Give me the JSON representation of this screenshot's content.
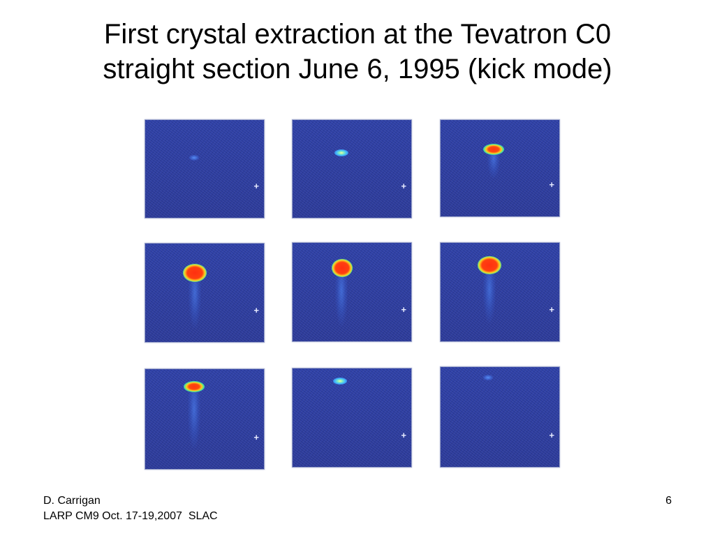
{
  "slide": {
    "title_line1": "First crystal extraction at the Tevatron C0",
    "title_line2": "straight section June 6, 1995 (kick mode)",
    "page_number": "6",
    "footer_line1": "D. Carrigan",
    "footer_line2": "LARP CM9 Oct. 17-19,2007  SLAC"
  },
  "panels": [
    {
      "marker": "+",
      "spot_intensity": "faint"
    },
    {
      "marker": "+",
      "spot_intensity": "small"
    },
    {
      "marker": "+",
      "spot_intensity": "medium"
    },
    {
      "marker": "+",
      "spot_intensity": "large"
    },
    {
      "marker": "+",
      "spot_intensity": "large"
    },
    {
      "marker": "+",
      "spot_intensity": "large"
    },
    {
      "marker": "+",
      "spot_intensity": "medium"
    },
    {
      "marker": "+",
      "spot_intensity": "small"
    },
    {
      "marker": "+",
      "spot_intensity": "faint"
    }
  ],
  "colors": {
    "panel_background": "#2a3a9a",
    "beam_core": "#ff3a10",
    "beam_halo": "#ffd020"
  }
}
